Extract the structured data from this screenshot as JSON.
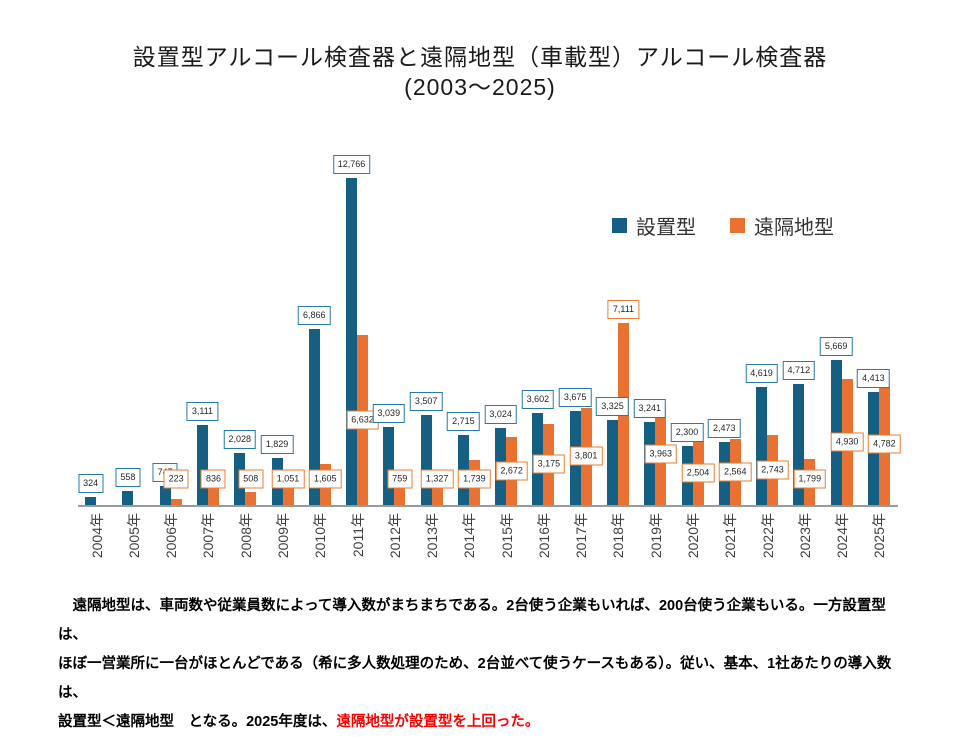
{
  "title": {
    "line1": "設置型アルコール検査器と遠隔地型（車載型）アルコール検査器",
    "line2": "(2003〜2025)"
  },
  "legend": [
    {
      "label": "設置型",
      "color": "#156082"
    },
    {
      "label": "遠隔地型",
      "color": "#E97132"
    }
  ],
  "chart_data": {
    "type": "bar",
    "title": "設置型アルコール検査器と遠隔地型（車載型）アルコール検査器 (2003〜2025)",
    "categories": [
      "2004年",
      "2005年",
      "2006年",
      "2007年",
      "2008年",
      "2009年",
      "2010年",
      "2011年",
      "2012年",
      "2013年",
      "2014年",
      "2015年",
      "2016年",
      "2017年",
      "2018年",
      "2019年",
      "2020年",
      "2021年",
      "2022年",
      "2023年",
      "2024年",
      "2025年"
    ],
    "series": [
      {
        "name": "設置型",
        "color": "#156082",
        "label_border": "#2779A7",
        "values": [
          324,
          558,
          747,
          3111,
          2028,
          1829,
          6866,
          12766,
          3039,
          3507,
          2715,
          3024,
          3602,
          3675,
          3325,
          3241,
          2300,
          2473,
          4619,
          4712,
          5669,
          4413
        ]
      },
      {
        "name": "遠隔地型",
        "color": "#E97132",
        "label_border": "#ED7D31",
        "values": [
          null,
          null,
          223,
          836,
          508,
          1051,
          1605,
          6632,
          759,
          1327,
          1739,
          2672,
          3175,
          3801,
          7111,
          3963,
          2504,
          2564,
          2743,
          1799,
          4930,
          4782
        ]
      }
    ],
    "xlabel": "",
    "ylabel": "",
    "ylim": [
      0,
      13000
    ],
    "grid": false,
    "data_labels": true,
    "legend_position": "inside-upper-right",
    "axis_line_color": "#9a9a9a"
  },
  "footer": {
    "line1": "　遠隔地型は、車両数や従業員数によって導入数がまちまちである。2台使う企業もいれば、200台使う企業もいる。一方設置型は、",
    "line2": "ほぼ一営業所に一台がほとんどである（希に多人数処理のため、2台並べて使うケースもある）。従い、基本、1社あたりの導入数は、",
    "line3_black": "設置型＜遠隔地型　となる。2025年度は、",
    "line3_red": "遠隔地型が設置型を上回った。"
  }
}
